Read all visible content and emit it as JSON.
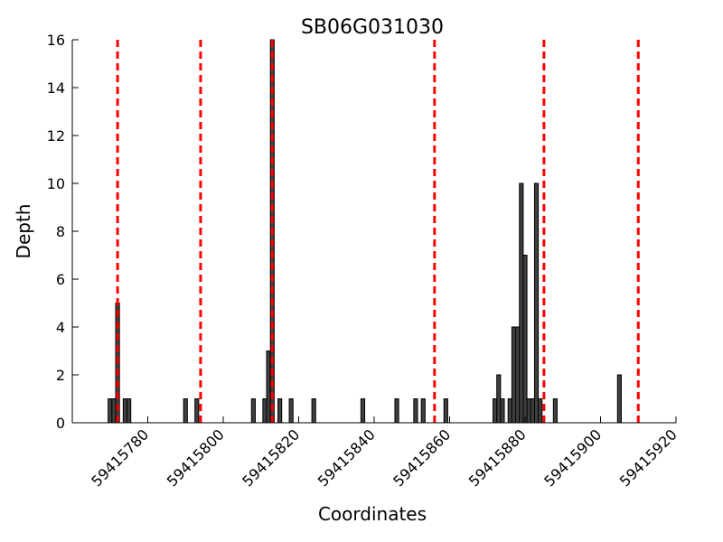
{
  "chart_data": {
    "type": "bar",
    "title": "SB06G031030",
    "xlabel": "Coordinates",
    "ylabel": "Depth",
    "xlim": [
      59415760,
      59415920
    ],
    "ylim": [
      0,
      16
    ],
    "xticks": [
      59415780,
      59415800,
      59415820,
      59415840,
      59415860,
      59415880,
      59415900,
      59415920
    ],
    "xtick_labels": [
      "59415780",
      "59415800",
      "59415820",
      "59415840",
      "59415860",
      "59415880",
      "59415900",
      "59415920"
    ],
    "yticks": [
      0,
      2,
      4,
      6,
      8,
      10,
      12,
      14,
      16
    ],
    "ytick_labels": [
      "0",
      "2",
      "4",
      "6",
      "8",
      "10",
      "12",
      "14",
      "16"
    ],
    "grid": false,
    "bar_width": 1,
    "series": [
      {
        "x": [
          59415770,
          59415771,
          59415772,
          59415774,
          59415775,
          59415790,
          59415793,
          59415808,
          59415811,
          59415812,
          59415813,
          59415815,
          59415818,
          59415824,
          59415837,
          59415846,
          59415851,
          59415853,
          59415859,
          59415872,
          59415873,
          59415874,
          59415876,
          59415877,
          59415878,
          59415879,
          59415880,
          59415881,
          59415882,
          59415883,
          59415884,
          59415888,
          59415905
        ],
        "values": [
          1,
          1,
          5,
          1,
          1,
          1,
          1,
          1,
          1,
          3,
          16,
          1,
          1,
          1,
          1,
          1,
          1,
          1,
          1,
          1,
          2,
          1,
          1,
          4,
          4,
          10,
          7,
          1,
          1,
          10,
          1,
          1,
          2
        ]
      }
    ],
    "marker_lines": [
      59415772,
      59415794,
      59415813,
      59415856,
      59415885,
      59415910
    ],
    "colors": {
      "bar_fill": "#404040",
      "bar_edge": "#000000",
      "marker": "#ff0000"
    }
  }
}
